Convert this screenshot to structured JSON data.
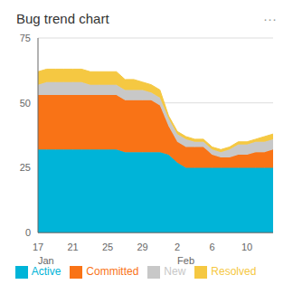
{
  "chart_data": {
    "type": "area",
    "title": "Bug trend chart",
    "stacked": true,
    "categories": [
      "17",
      null,
      null,
      null,
      "21",
      null,
      null,
      null,
      "25",
      null,
      null,
      null,
      "29",
      null,
      null,
      null,
      "2",
      null,
      null,
      null,
      "6",
      null,
      null,
      null,
      "10",
      null,
      null,
      null
    ],
    "series": [
      {
        "name": "Active",
        "color": "#00B4D8",
        "values": [
          32,
          32,
          32,
          32,
          32,
          32,
          32,
          32,
          32,
          32,
          31,
          31,
          31,
          31,
          31,
          30,
          27,
          25,
          25,
          25,
          25,
          25,
          25,
          25,
          25,
          25,
          25,
          25
        ]
      },
      {
        "name": "Committed",
        "color": "#F97316",
        "values": [
          21,
          21,
          21,
          21,
          21,
          21,
          21,
          21,
          21,
          21,
          20,
          20,
          20,
          20,
          18,
          11,
          8,
          8,
          8,
          8,
          5,
          4,
          4,
          5,
          5,
          6,
          6,
          7
        ]
      },
      {
        "name": "New",
        "color": "#C8C8C8",
        "values": [
          4,
          5,
          5,
          5,
          5,
          5,
          4,
          4,
          4,
          4,
          4,
          4,
          4,
          3,
          3,
          3,
          3,
          3,
          2,
          2,
          2,
          2,
          3,
          4,
          4,
          4,
          4,
          4
        ]
      },
      {
        "name": "Resolved",
        "color": "#F5C842",
        "values": [
          5,
          5,
          5,
          5,
          5,
          5,
          5,
          5,
          5,
          5,
          4,
          4,
          3,
          3,
          3,
          1,
          1,
          1,
          1,
          1,
          1,
          1,
          1,
          1,
          1,
          1,
          2,
          2
        ]
      }
    ],
    "ylim": [
      0,
      75
    ],
    "yticks": [
      0,
      25,
      50,
      75
    ],
    "grid": true,
    "legend": "bottom",
    "annotations": [
      {
        "text": "Jan",
        "category": "17"
      },
      {
        "text": "Feb",
        "category": "2"
      },
      {
        "text": "···"
      }
    ]
  }
}
